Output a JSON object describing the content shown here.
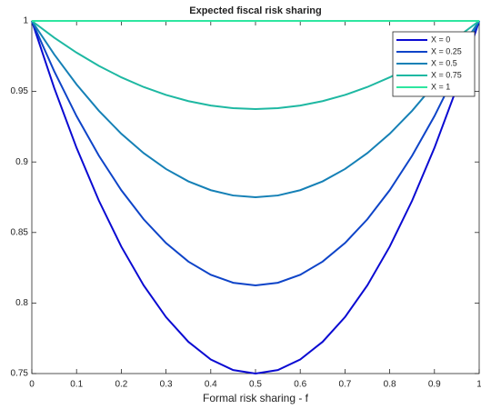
{
  "chart_data": {
    "type": "line",
    "title": "Expected fiscal risk sharing",
    "xlabel": "Formal risk sharing - f",
    "x": [
      0,
      0.05,
      0.1,
      0.15,
      0.2,
      0.25,
      0.3,
      0.35,
      0.4,
      0.45,
      0.5,
      0.55,
      0.6,
      0.65,
      0.7,
      0.75,
      0.8,
      0.85,
      0.9,
      0.95,
      1
    ],
    "series": [
      {
        "name": "X = 0",
        "color": "#0a0ad2",
        "values": [
          1,
          0.9525,
          0.91,
          0.8725,
          0.84,
          0.8125,
          0.79,
          0.7725,
          0.76,
          0.7525,
          0.75,
          0.7525,
          0.76,
          0.7725,
          0.79,
          0.8125,
          0.84,
          0.8725,
          0.91,
          0.9525,
          1
        ]
      },
      {
        "name": "X = 0.25",
        "color": "#0e44c8",
        "values": [
          1,
          0.964375,
          0.9325,
          0.904375,
          0.88,
          0.859375,
          0.8425,
          0.829375,
          0.82,
          0.814375,
          0.8125,
          0.814375,
          0.82,
          0.829375,
          0.8425,
          0.859375,
          0.88,
          0.904375,
          0.9325,
          0.964375,
          1
        ]
      },
      {
        "name": "X = 0.5",
        "color": "#1580b6",
        "values": [
          1,
          0.97625,
          0.955,
          0.93625,
          0.92,
          0.90625,
          0.895,
          0.88625,
          0.88,
          0.87625,
          0.875,
          0.87625,
          0.88,
          0.88625,
          0.895,
          0.90625,
          0.92,
          0.93625,
          0.955,
          0.97625,
          1
        ]
      },
      {
        "name": "X = 0.75",
        "color": "#1eb8a2",
        "values": [
          1,
          0.988125,
          0.9775,
          0.968125,
          0.96,
          0.953125,
          0.9475,
          0.943125,
          0.94,
          0.938125,
          0.9375,
          0.938125,
          0.94,
          0.943125,
          0.9475,
          0.953125,
          0.96,
          0.968125,
          0.9775,
          0.988125,
          1
        ]
      },
      {
        "name": "X = 1",
        "color": "#2ee6a0",
        "values": [
          1,
          1,
          1,
          1,
          1,
          1,
          1,
          1,
          1,
          1,
          1,
          1,
          1,
          1,
          1,
          1,
          1,
          1,
          1,
          1,
          1
        ]
      }
    ],
    "xlim": [
      0,
      1
    ],
    "xticks": [
      0,
      0.1,
      0.2,
      0.3,
      0.4,
      0.5,
      0.6,
      0.7,
      0.8,
      0.9,
      1
    ],
    "ylim": [
      0.75,
      1
    ],
    "yticks": [
      0.75,
      0.8,
      0.85,
      0.9,
      0.95,
      1
    ],
    "grid": false,
    "legend": "top-right"
  }
}
